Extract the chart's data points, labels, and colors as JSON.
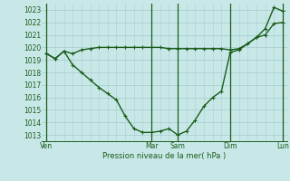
{
  "bg_color": "#c8e8e8",
  "grid_color": "#a8d0d0",
  "line_color": "#1a5c1a",
  "ylabel": "Pression niveau de la mer( hPa )",
  "ylim": [
    1012.5,
    1023.5
  ],
  "yticks": [
    1013,
    1014,
    1015,
    1016,
    1017,
    1018,
    1019,
    1020,
    1021,
    1022,
    1023
  ],
  "xtick_labels": [
    "Ven",
    "Mar",
    "Sam",
    "Dim",
    "Lun"
  ],
  "xtick_positions": [
    0,
    12,
    15,
    21,
    27
  ],
  "vlines": [
    0,
    12,
    15,
    21,
    27
  ],
  "total_points": 28,
  "series1_x": [
    0,
    1,
    2,
    3,
    4,
    5,
    6,
    7,
    8,
    9,
    10,
    11,
    12,
    13,
    14,
    15,
    16,
    17,
    18,
    19,
    20,
    21,
    22,
    23,
    24,
    25,
    26,
    27
  ],
  "series1_y": [
    1019.5,
    1019.1,
    1019.7,
    1019.5,
    1019.8,
    1019.9,
    1020.0,
    1020.0,
    1020.0,
    1020.0,
    1020.0,
    1020.0,
    1020.0,
    1020.0,
    1019.9,
    1019.9,
    1019.9,
    1019.9,
    1019.9,
    1019.9,
    1019.9,
    1019.8,
    1019.9,
    1020.3,
    1020.8,
    1021.0,
    1021.9,
    1022.0
  ],
  "series2_x": [
    0,
    1,
    2,
    3,
    4,
    5,
    6,
    7,
    8,
    9,
    10,
    11,
    12,
    13,
    14,
    15,
    16,
    17,
    18,
    19,
    20,
    21,
    22,
    23,
    24,
    25,
    26,
    27
  ],
  "series2_y": [
    1019.5,
    1019.1,
    1019.7,
    1018.6,
    1018.0,
    1017.4,
    1016.8,
    1016.3,
    1015.8,
    1014.5,
    1013.5,
    1013.2,
    1013.2,
    1013.3,
    1013.5,
    1013.0,
    1013.3,
    1014.2,
    1015.3,
    1016.0,
    1016.5,
    1019.6,
    1019.8,
    1020.3,
    1020.8,
    1021.5,
    1023.2,
    1022.9
  ]
}
